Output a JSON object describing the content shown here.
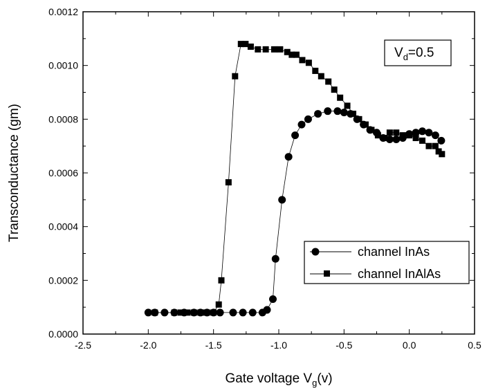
{
  "chart_data": {
    "type": "scatter",
    "xlabel_main": "Gate voltage V",
    "xlabel_sub": "g",
    "xlabel_tail": "(v)",
    "ylabel": "Transconductance (gm)",
    "xlim": [
      -2.5,
      0.5
    ],
    "ylim": [
      0,
      0.0012
    ],
    "xticks": [
      -2.5,
      -2.0,
      -1.5,
      -1.0,
      -0.5,
      0.0,
      0.5
    ],
    "xtick_labels": [
      "-2.5",
      "-2.0",
      "-1.5",
      "-1.0",
      "-0.5",
      "0.0",
      "0.5"
    ],
    "yticks": [
      0,
      0.0002,
      0.0004,
      0.0006,
      0.0008,
      0.001,
      0.0012
    ],
    "ytick_labels": [
      "0.0000",
      "0.0002",
      "0.0004",
      "0.0006",
      "0.0008",
      "0.0010",
      "0.0012"
    ],
    "annotation": {
      "main": "V",
      "sub": "d",
      "tail": "=0.5"
    },
    "legend_position": "lower-right",
    "series": [
      {
        "name": "channel InAs",
        "marker": "circle",
        "x": [
          -2.0,
          -1.95,
          -1.875,
          -1.8,
          -1.725,
          -1.65,
          -1.6,
          -1.55,
          -1.5,
          -1.45,
          -1.35,
          -1.275,
          -1.2,
          -1.125,
          -1.09,
          -1.045,
          -1.025,
          -0.975,
          -0.925,
          -0.875,
          -0.825,
          -0.775,
          -0.7,
          -0.625,
          -0.55,
          -0.5,
          -0.45,
          -0.4,
          -0.35,
          -0.3,
          -0.25,
          -0.2,
          -0.15,
          -0.1,
          -0.05,
          0.0,
          0.05,
          0.1,
          0.15,
          0.2,
          0.245
        ],
        "y": [
          8e-05,
          8e-05,
          8e-05,
          8e-05,
          8e-05,
          8e-05,
          8e-05,
          8e-05,
          8e-05,
          8e-05,
          8e-05,
          8e-05,
          8e-05,
          8e-05,
          9e-05,
          0.00013,
          0.00028,
          0.0005,
          0.00066,
          0.00074,
          0.00078,
          0.0008,
          0.00082,
          0.00083,
          0.00083,
          0.000825,
          0.00082,
          0.0008,
          0.00078,
          0.00076,
          0.00075,
          0.00073,
          0.000725,
          0.000725,
          0.00073,
          0.000745,
          0.00075,
          0.000755,
          0.00075,
          0.00074,
          0.00072
        ]
      },
      {
        "name": "channel InAlAs",
        "marker": "square",
        "x": [
          -1.95,
          -1.8,
          -1.75,
          -1.7,
          -1.65,
          -1.6,
          -1.575,
          -1.55,
          -1.5,
          -1.46,
          -1.44,
          -1.385,
          -1.335,
          -1.29,
          -1.255,
          -1.215,
          -1.16,
          -1.1,
          -1.035,
          -0.99,
          -0.935,
          -0.9,
          -0.865,
          -0.82,
          -0.77,
          -0.72,
          -0.675,
          -0.62,
          -0.575,
          -0.53,
          -0.475,
          -0.43,
          -0.385,
          -0.335,
          -0.29,
          -0.24,
          -0.19,
          -0.15,
          -0.1,
          -0.05,
          0.0,
          0.05,
          0.1,
          0.15,
          0.2,
          0.225,
          0.25
        ],
        "y": [
          8e-05,
          8e-05,
          8e-05,
          8e-05,
          8e-05,
          8e-05,
          8e-05,
          8e-05,
          8e-05,
          0.00011,
          0.0002,
          0.000565,
          0.00096,
          0.00108,
          0.00108,
          0.00107,
          0.00106,
          0.00106,
          0.00106,
          0.00106,
          0.00105,
          0.00104,
          0.00104,
          0.00102,
          0.00101,
          0.00098,
          0.00096,
          0.00094,
          0.00091,
          0.00088,
          0.00085,
          0.00082,
          0.0008,
          0.00078,
          0.00076,
          0.00074,
          0.00073,
          0.00075,
          0.00075,
          0.00074,
          0.00074,
          0.00073,
          0.00072,
          0.0007,
          0.0007,
          0.00068,
          0.00067
        ]
      }
    ]
  }
}
